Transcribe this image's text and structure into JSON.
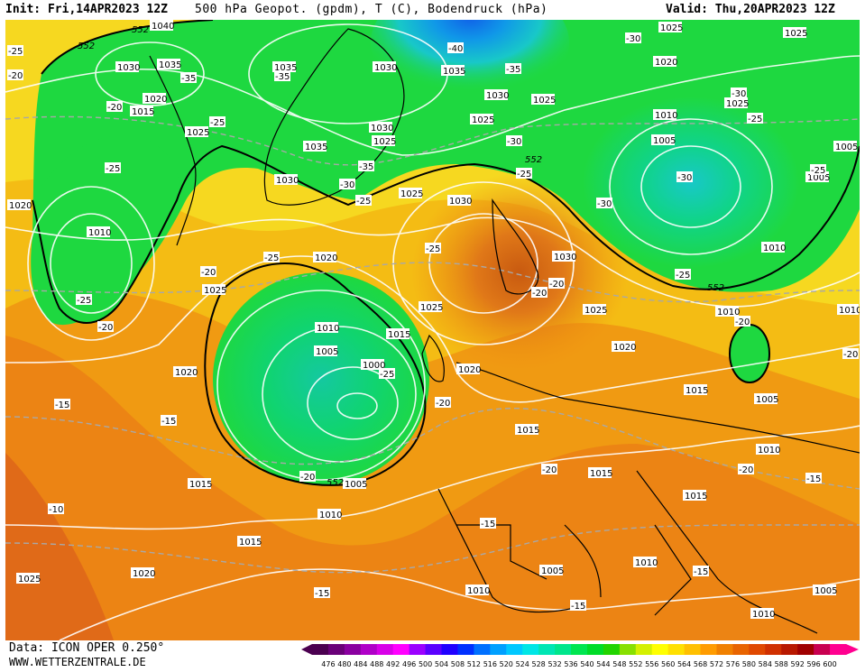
{
  "header": {
    "init": "Init: Fri,14APR2023 12Z",
    "title": "500 hPa Geopot. (gpdm), T (C), Bodendruck (hPa)",
    "valid": "Valid: Thu,20APR2023 12Z"
  },
  "footer": {
    "data_source": "Data: ICON OPER 0.250°",
    "website": "WWW.WETTERZENTRALE.DE"
  },
  "legend": {
    "values": [
      "476",
      "480",
      "484",
      "488",
      "492",
      "496",
      "500",
      "504",
      "508",
      "512",
      "516",
      "520",
      "524",
      "528",
      "532",
      "536",
      "540",
      "544",
      "548",
      "552",
      "556",
      "560",
      "564",
      "568",
      "572",
      "576",
      "580",
      "584",
      "588",
      "592",
      "596",
      "600"
    ],
    "colors": [
      "#4b0050",
      "#6a0078",
      "#8a00a0",
      "#b000c8",
      "#d800e8",
      "#ff00ff",
      "#9b00ff",
      "#5a00ff",
      "#2000ff",
      "#0030ff",
      "#0070ff",
      "#00a0ff",
      "#00c8ff",
      "#00e6e6",
      "#00e6b4",
      "#00e68c",
      "#00e650",
      "#00dc28",
      "#22d400",
      "#88e000",
      "#d4f000",
      "#ffff00",
      "#ffe000",
      "#ffc000",
      "#ff9c00",
      "#f08000",
      "#e86400",
      "#e04800",
      "#d03000",
      "#b81800",
      "#a00000",
      "#c80050",
      "#ff0090"
    ]
  },
  "map": {
    "geopotential_contour_label": "552",
    "pressure_labels": [
      {
        "text": "1040",
        "id": "p1"
      },
      {
        "text": "1030",
        "id": "p2"
      },
      {
        "text": "1035",
        "id": "p3"
      },
      {
        "text": "1035",
        "id": "p4"
      },
      {
        "text": "1030",
        "id": "p5"
      },
      {
        "text": "1035",
        "id": "p6"
      },
      {
        "text": "1030",
        "id": "p7"
      },
      {
        "text": "1025",
        "id": "p8"
      },
      {
        "text": "1020",
        "id": "p9"
      },
      {
        "text": "1015",
        "id": "p10"
      },
      {
        "text": "1025",
        "id": "p11"
      },
      {
        "text": "1030",
        "id": "p12"
      },
      {
        "text": "1025",
        "id": "p13"
      },
      {
        "text": "1035",
        "id": "p14"
      },
      {
        "text": "1030",
        "id": "p15"
      },
      {
        "text": "1025",
        "id": "p16"
      },
      {
        "text": "1030",
        "id": "p17"
      },
      {
        "text": "1025",
        "id": "p18"
      },
      {
        "text": "1025",
        "id": "p19"
      },
      {
        "text": "1020",
        "id": "p20"
      },
      {
        "text": "1010",
        "id": "p21"
      },
      {
        "text": "1005",
        "id": "p22"
      },
      {
        "text": "1010",
        "id": "p23"
      },
      {
        "text": "1005",
        "id": "p24"
      },
      {
        "text": "1025",
        "id": "p25"
      },
      {
        "text": "1025",
        "id": "p26"
      },
      {
        "text": "1020",
        "id": "p27"
      },
      {
        "text": "1010",
        "id": "p28"
      },
      {
        "text": "1020",
        "id": "p29"
      },
      {
        "text": "1025",
        "id": "p30"
      },
      {
        "text": "1010",
        "id": "p31"
      },
      {
        "text": "1005",
        "id": "p32"
      },
      {
        "text": "1015",
        "id": "p33"
      },
      {
        "text": "1000",
        "id": "p34"
      },
      {
        "text": "1020",
        "id": "p35"
      },
      {
        "text": "1030",
        "id": "p36"
      },
      {
        "text": "1025",
        "id": "p37"
      },
      {
        "text": "1025",
        "id": "p38"
      },
      {
        "text": "1020",
        "id": "p39"
      },
      {
        "text": "1010",
        "id": "p40"
      },
      {
        "text": "1015",
        "id": "p41"
      },
      {
        "text": "1005",
        "id": "p42"
      },
      {
        "text": "1010",
        "id": "p43"
      },
      {
        "text": "1015",
        "id": "p44"
      },
      {
        "text": "1015",
        "id": "p45"
      },
      {
        "text": "1005",
        "id": "p46"
      },
      {
        "text": "1010",
        "id": "p47"
      },
      {
        "text": "1015",
        "id": "p48"
      },
      {
        "text": "1020",
        "id": "p49"
      },
      {
        "text": "1020",
        "id": "p50"
      },
      {
        "text": "1015",
        "id": "p51"
      },
      {
        "text": "1015",
        "id": "p52"
      },
      {
        "text": "1005",
        "id": "p53"
      },
      {
        "text": "1010",
        "id": "p54"
      },
      {
        "text": "1010",
        "id": "p55"
      },
      {
        "text": "1005",
        "id": "p56"
      },
      {
        "text": "1010",
        "id": "p57"
      },
      {
        "text": "1005",
        "id": "p58"
      },
      {
        "text": "1010",
        "id": "p59"
      },
      {
        "text": "1030",
        "id": "p60"
      },
      {
        "text": "1020",
        "id": "p61"
      },
      {
        "text": "1025",
        "id": "p62"
      },
      {
        "text": "1015",
        "id": "p63"
      },
      {
        "text": "1010",
        "id": "p64"
      },
      {
        "text": "1020",
        "id": "p65"
      },
      {
        "text": "1025",
        "id": "p66"
      }
    ],
    "temperature_labels": [
      {
        "text": "-25",
        "id": "t1"
      },
      {
        "text": "-20",
        "id": "t2"
      },
      {
        "text": "-35",
        "id": "t3"
      },
      {
        "text": "-20",
        "id": "t4"
      },
      {
        "text": "-25",
        "id": "t5"
      },
      {
        "text": "-35",
        "id": "t6"
      },
      {
        "text": "-40",
        "id": "t7"
      },
      {
        "text": "-35",
        "id": "t8"
      },
      {
        "text": "-30",
        "id": "t9"
      },
      {
        "text": "-25",
        "id": "t10"
      },
      {
        "text": "-30",
        "id": "t11"
      },
      {
        "text": "-30",
        "id": "t12"
      },
      {
        "text": "-35",
        "id": "t13"
      },
      {
        "text": "-30",
        "id": "t14"
      },
      {
        "text": "-25",
        "id": "t15"
      },
      {
        "text": "-25",
        "id": "t16"
      },
      {
        "text": "-30",
        "id": "t17"
      },
      {
        "text": "-25",
        "id": "t18"
      },
      {
        "text": "-25",
        "id": "t19"
      },
      {
        "text": "-30",
        "id": "t20"
      },
      {
        "text": "-25",
        "id": "t21"
      },
      {
        "text": "-20",
        "id": "t22"
      },
      {
        "text": "-25",
        "id": "t23"
      },
      {
        "text": "-20",
        "id": "t24"
      },
      {
        "text": "-20",
        "id": "t25"
      },
      {
        "text": "-25",
        "id": "t26"
      },
      {
        "text": "-20",
        "id": "t27"
      },
      {
        "text": "-25",
        "id": "t28"
      },
      {
        "text": "-20",
        "id": "t29"
      },
      {
        "text": "-20",
        "id": "t30"
      },
      {
        "text": "-15",
        "id": "t31"
      },
      {
        "text": "-15",
        "id": "t32"
      },
      {
        "text": "-25",
        "id": "t33"
      },
      {
        "text": "-20",
        "id": "t34"
      },
      {
        "text": "-20",
        "id": "t35"
      },
      {
        "text": "-20",
        "id": "t36"
      },
      {
        "text": "-15",
        "id": "t37"
      },
      {
        "text": "-10",
        "id": "t38"
      },
      {
        "text": "-15",
        "id": "t39"
      },
      {
        "text": "-15",
        "id": "t40"
      },
      {
        "text": "-15",
        "id": "t41"
      },
      {
        "text": "-15",
        "id": "t42"
      },
      {
        "text": "-20",
        "id": "t43"
      },
      {
        "text": "-15",
        "id": "t44"
      },
      {
        "text": "-20",
        "id": "t45"
      }
    ],
    "field_colors": {
      "bg_low": "#d85a18",
      "orange": "#f09010",
      "amber": "#f4b010",
      "yellow": "#f8d820",
      "lightyellow": "#f4ec40",
      "green": "#1ed840",
      "green_mid": "#10d470",
      "cyan": "#18c8c8",
      "blue": "#1098e8",
      "deep_blue": "#1060e8",
      "land": "#000000",
      "isobar": "#ffffff",
      "isotherm": "#a0a0a0"
    }
  }
}
